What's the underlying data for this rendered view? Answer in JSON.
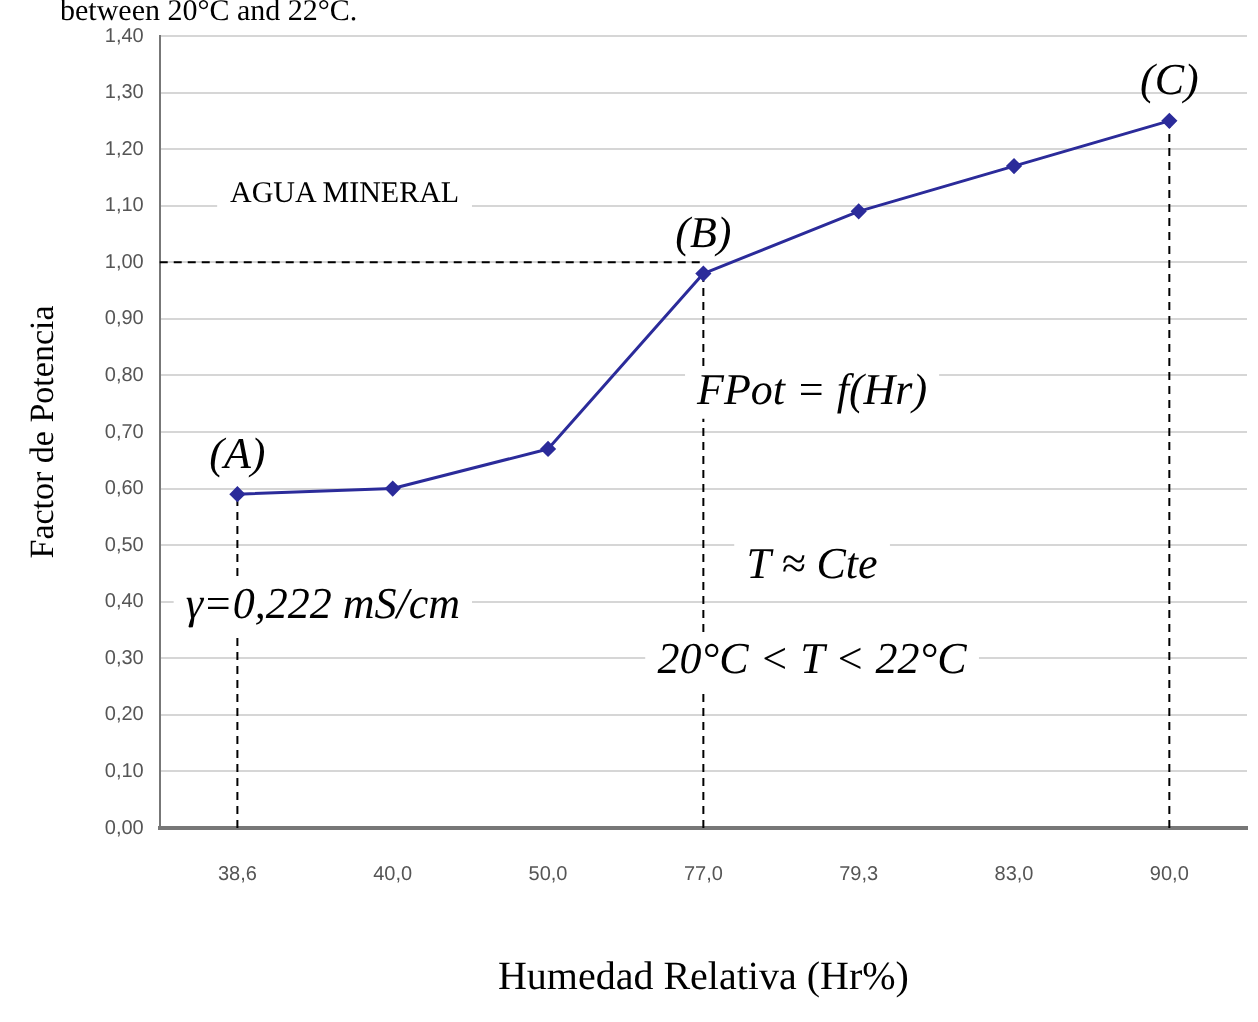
{
  "chart_data": {
    "type": "line",
    "xlabel": "Humedad Relativa (Hr%)",
    "ylabel": "Factor de Potencia",
    "categories": [
      "38,6",
      "40,0",
      "50,0",
      "77,0",
      "79,3",
      "83,0",
      "90,0"
    ],
    "series": [
      {
        "color": "#2b2b9a",
        "values": [
          0.59,
          0.6,
          0.67,
          0.98,
          1.09,
          1.17,
          1.25
        ]
      }
    ],
    "ylim": [
      0,
      1.4
    ],
    "yticks": [
      {
        "value": 0,
        "label": "0,00"
      },
      {
        "value": 0.1,
        "label": "0,10"
      },
      {
        "value": 0.2,
        "label": "0,20"
      },
      {
        "value": 0.3,
        "label": "0,30"
      },
      {
        "value": 0.4,
        "label": "0,40"
      },
      {
        "value": 0.5,
        "label": "0,50"
      },
      {
        "value": 0.6,
        "label": "0,60"
      },
      {
        "value": 0.7,
        "label": "0,70"
      },
      {
        "value": 0.8,
        "label": "0,80"
      },
      {
        "value": 0.9,
        "label": "0,90"
      },
      {
        "value": 1.0,
        "label": "1,00"
      },
      {
        "value": 1.1,
        "label": "1,10"
      },
      {
        "value": 1.2,
        "label": "1,20"
      },
      {
        "value": 1.3,
        "label": "1,30"
      },
      {
        "value": 1.4,
        "label": "1,40"
      }
    ],
    "grid": "y",
    "legend": false,
    "marker": "diamond",
    "line_style": "solid",
    "ref_lines": [
      {
        "axis": "y",
        "value": 1.0,
        "line_style": "dashed",
        "color": "#000000"
      },
      {
        "axis": "x",
        "value": "38,6",
        "line_style": "dashed",
        "color": "#000000"
      },
      {
        "axis": "x",
        "value": "77,0",
        "line_style": "dashed",
        "color": "#000000"
      },
      {
        "axis": "x",
        "value": "90,0",
        "line_style": "dashed",
        "color": "#000000"
      }
    ],
    "annotations": [
      "between 20°C and 22°C.",
      {
        "text": "(A)",
        "x": "38,6",
        "y": 0.59
      },
      {
        "text": "(B)",
        "x": "77,0",
        "y": 0.98
      },
      {
        "text": "(C)",
        "x": "90,0",
        "y": 1.25
      },
      "AGUA MINERAL",
      "γ=0,222 mS/cm",
      "FPot = f(Hr)",
      "T ≈ Cte",
      "20°C < T < 22°C"
    ]
  }
}
